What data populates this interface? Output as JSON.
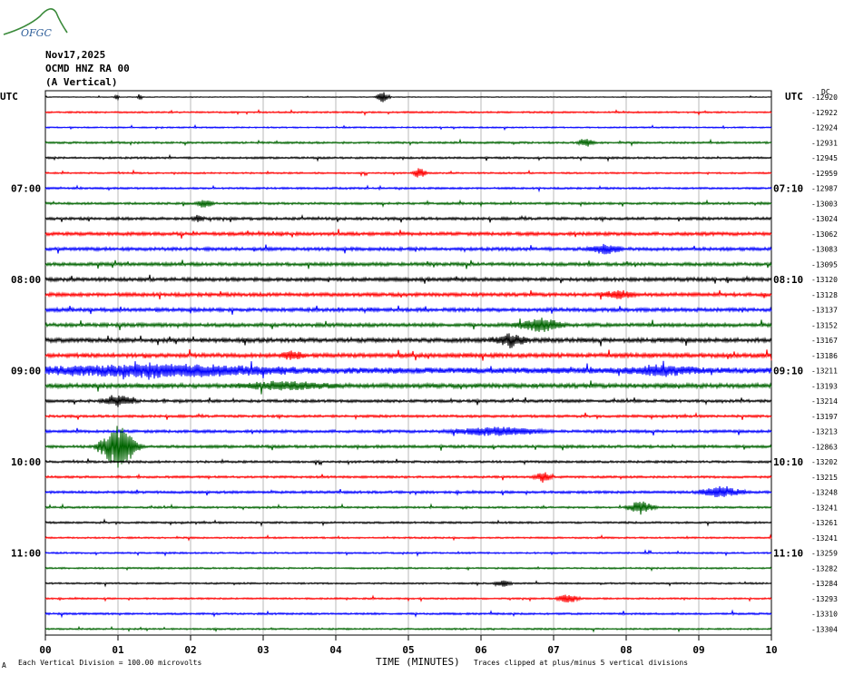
{
  "logo": {
    "text": "OFGC"
  },
  "header": {
    "date": "Nov17,2025",
    "station": "OCMD HNZ RA 00",
    "component": "(A Vertical)",
    "left_tz": "UTC",
    "right_tz": "UTC",
    "right_col_label": "DC"
  },
  "footer": {
    "scale_note": "Each Vertical Division =  100.00 microvolts",
    "clip_note": "Traces clipped at plus/minus 5 vertical divisions",
    "corner_mark": "A"
  },
  "chart_data": {
    "type": "helicorder",
    "xlabel": "TIME (MINUTES)",
    "xlim": [
      0,
      10
    ],
    "x_ticks": [
      "00",
      "01",
      "02",
      "03",
      "04",
      "05",
      "06",
      "07",
      "08",
      "09",
      "10"
    ],
    "trace_colors": [
      "#000000",
      "#ff0000",
      "#0000ff",
      "#006400"
    ],
    "left_hour_labels": [
      {
        "trace": 6,
        "text": "07:00"
      },
      {
        "trace": 12,
        "text": "08:00"
      },
      {
        "trace": 18,
        "text": "09:00"
      },
      {
        "trace": 24,
        "text": "10:00"
      },
      {
        "trace": 30,
        "text": "11:00"
      }
    ],
    "right_hour_labels": [
      {
        "trace": 6,
        "text": "07:10"
      },
      {
        "trace": 12,
        "text": "08:10"
      },
      {
        "trace": 18,
        "text": "09:10"
      },
      {
        "trace": 24,
        "text": "10:10"
      },
      {
        "trace": 30,
        "text": "11:10"
      }
    ],
    "dc_offsets": [
      "-12920",
      "-12922",
      "-12924",
      "-12931",
      "-12945",
      "-12959",
      "-12987",
      "-13003",
      "-13024",
      "-13062",
      "-13083",
      "-13095",
      "-13120",
      "-13128",
      "-13137",
      "-13152",
      "-13167",
      "-13186",
      "-13211",
      "-13193",
      "-13214",
      "-13197",
      "-13213",
      "-12863",
      "-13202",
      "-13215",
      "-13248",
      "-13241",
      "-13261",
      "-13241",
      "-13259",
      "-13282",
      "-13284",
      "-13293",
      "-13310",
      "-13304"
    ],
    "trace_noise": [
      0.3,
      0.6,
      0.5,
      0.7,
      0.7,
      0.6,
      0.7,
      0.8,
      1.0,
      1.2,
      1.2,
      1.2,
      1.3,
      1.3,
      1.3,
      1.3,
      1.5,
      1.5,
      2.2,
      1.6,
      1.0,
      0.9,
      1.0,
      1.0,
      0.8,
      0.8,
      0.9,
      0.7,
      0.7,
      0.6,
      0.6,
      0.6,
      0.6,
      0.6,
      0.7,
      0.6
    ],
    "events": [
      {
        "trace": 0,
        "minute": 4.65,
        "width": 0.12,
        "amp": 7
      },
      {
        "trace": 0,
        "minute": 0.98,
        "width": 0.04,
        "amp": 5
      },
      {
        "trace": 0,
        "minute": 1.3,
        "width": 0.04,
        "amp": 4
      },
      {
        "trace": 3,
        "minute": 7.45,
        "width": 0.15,
        "amp": 5
      },
      {
        "trace": 5,
        "minute": 5.15,
        "width": 0.12,
        "amp": 6
      },
      {
        "trace": 7,
        "minute": 2.2,
        "width": 0.15,
        "amp": 5
      },
      {
        "trace": 8,
        "minute": 2.1,
        "width": 0.1,
        "amp": 4
      },
      {
        "trace": 10,
        "minute": 7.7,
        "width": 0.3,
        "amp": 5
      },
      {
        "trace": 13,
        "minute": 7.9,
        "width": 0.3,
        "amp": 4
      },
      {
        "trace": 15,
        "minute": 6.8,
        "width": 0.4,
        "amp": 8
      },
      {
        "trace": 16,
        "minute": 6.4,
        "width": 0.3,
        "amp": 7
      },
      {
        "trace": 17,
        "minute": 3.4,
        "width": 0.2,
        "amp": 5
      },
      {
        "trace": 18,
        "minute": 1.5,
        "width": 2.3,
        "amp": 6
      },
      {
        "trace": 18,
        "minute": 8.5,
        "width": 0.6,
        "amp": 5
      },
      {
        "trace": 19,
        "minute": 3.3,
        "width": 0.8,
        "amp": 4
      },
      {
        "trace": 20,
        "minute": 1.0,
        "width": 0.3,
        "amp": 6
      },
      {
        "trace": 22,
        "minute": 6.2,
        "width": 0.8,
        "amp": 5
      },
      {
        "trace": 23,
        "minute": 1.0,
        "width": 0.35,
        "amp": 24
      },
      {
        "trace": 25,
        "minute": 6.85,
        "width": 0.15,
        "amp": 6
      },
      {
        "trace": 26,
        "minute": 9.3,
        "width": 0.4,
        "amp": 6
      },
      {
        "trace": 27,
        "minute": 8.2,
        "width": 0.25,
        "amp": 7
      },
      {
        "trace": 33,
        "minute": 7.2,
        "width": 0.2,
        "amp": 5
      },
      {
        "trace": 32,
        "minute": 6.3,
        "width": 0.15,
        "amp": 4
      }
    ]
  }
}
